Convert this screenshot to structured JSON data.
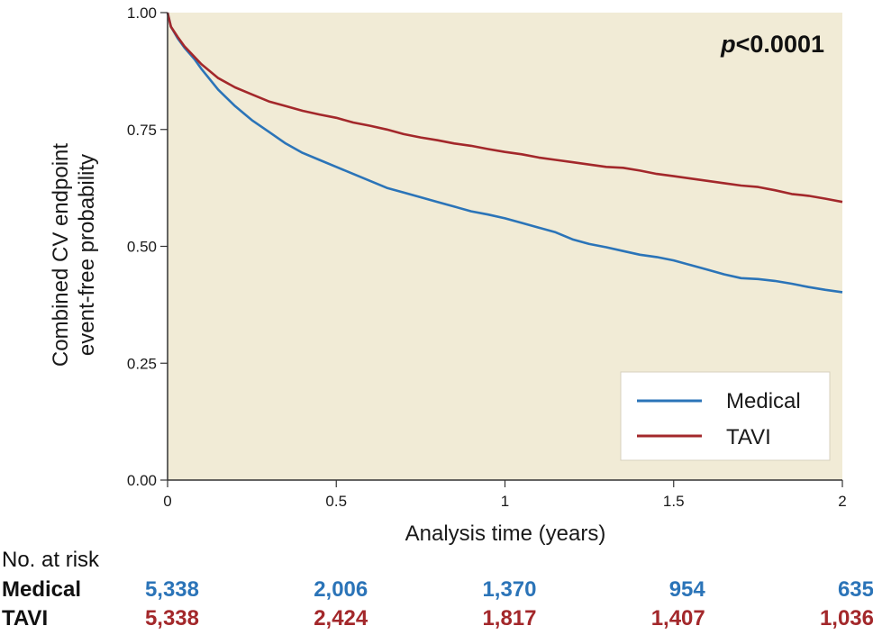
{
  "chart_data": {
    "type": "line",
    "xlabel": "Analysis time (years)",
    "ylabel_lines": [
      "Combined CV endpoint",
      "event-free probability"
    ],
    "xlim": [
      0,
      2
    ],
    "ylim": [
      0,
      1
    ],
    "x_ticks": [
      0,
      0.5,
      1,
      1.5,
      2
    ],
    "x_tick_labels": [
      "0",
      "0.5",
      "1",
      "1.5",
      "2"
    ],
    "y_ticks": [
      0,
      0.25,
      0.5,
      0.75,
      1
    ],
    "y_tick_labels": [
      "0.00",
      "0.25",
      "0.50",
      "0.75",
      "1.00"
    ],
    "background": "#f1ebd6",
    "grid": false,
    "annotation": {
      "italic": "p",
      "text": "<0.0001"
    },
    "legend_position": "bottom-right",
    "series": [
      {
        "name": "Medical",
        "color": "#2b74b8",
        "x": [
          0,
          0.01,
          0.03,
          0.05,
          0.08,
          0.1,
          0.15,
          0.2,
          0.25,
          0.3,
          0.35,
          0.4,
          0.45,
          0.5,
          0.55,
          0.6,
          0.65,
          0.7,
          0.75,
          0.8,
          0.85,
          0.9,
          0.95,
          1.0,
          1.05,
          1.1,
          1.15,
          1.2,
          1.25,
          1.3,
          1.35,
          1.4,
          1.45,
          1.5,
          1.55,
          1.6,
          1.65,
          1.7,
          1.75,
          1.8,
          1.85,
          1.9,
          1.95,
          2.0
        ],
        "y": [
          1.0,
          0.97,
          0.945,
          0.925,
          0.9,
          0.88,
          0.835,
          0.8,
          0.77,
          0.745,
          0.72,
          0.7,
          0.685,
          0.67,
          0.655,
          0.64,
          0.625,
          0.615,
          0.605,
          0.595,
          0.585,
          0.575,
          0.568,
          0.56,
          0.55,
          0.54,
          0.53,
          0.515,
          0.505,
          0.498,
          0.49,
          0.482,
          0.477,
          0.47,
          0.46,
          0.45,
          0.44,
          0.432,
          0.43,
          0.426,
          0.42,
          0.413,
          0.407,
          0.402
        ]
      },
      {
        "name": "TAVI",
        "color": "#a3282b",
        "x": [
          0,
          0.01,
          0.03,
          0.05,
          0.08,
          0.1,
          0.15,
          0.2,
          0.25,
          0.3,
          0.35,
          0.4,
          0.45,
          0.5,
          0.55,
          0.6,
          0.65,
          0.7,
          0.75,
          0.8,
          0.85,
          0.9,
          0.95,
          1.0,
          1.05,
          1.1,
          1.15,
          1.2,
          1.25,
          1.3,
          1.35,
          1.4,
          1.45,
          1.5,
          1.55,
          1.6,
          1.65,
          1.7,
          1.75,
          1.8,
          1.85,
          1.9,
          1.95,
          2.0
        ],
        "y": [
          1.0,
          0.97,
          0.948,
          0.928,
          0.905,
          0.89,
          0.86,
          0.84,
          0.825,
          0.81,
          0.8,
          0.79,
          0.782,
          0.775,
          0.765,
          0.758,
          0.75,
          0.74,
          0.733,
          0.727,
          0.72,
          0.715,
          0.708,
          0.702,
          0.697,
          0.69,
          0.685,
          0.68,
          0.675,
          0.67,
          0.668,
          0.662,
          0.655,
          0.65,
          0.645,
          0.64,
          0.635,
          0.63,
          0.627,
          0.62,
          0.612,
          0.608,
          0.602,
          0.595
        ]
      }
    ]
  },
  "risk_table": {
    "title": "No. at risk",
    "rows": [
      {
        "group": "Medical",
        "color": "#2b74b8",
        "values": [
          "5,338",
          "2,006",
          "1,370",
          "954",
          "635"
        ]
      },
      {
        "group": "TAVI",
        "color": "#a3282b",
        "values": [
          "5,338",
          "2,424",
          "1,817",
          "1,407",
          "1,036"
        ]
      }
    ]
  }
}
